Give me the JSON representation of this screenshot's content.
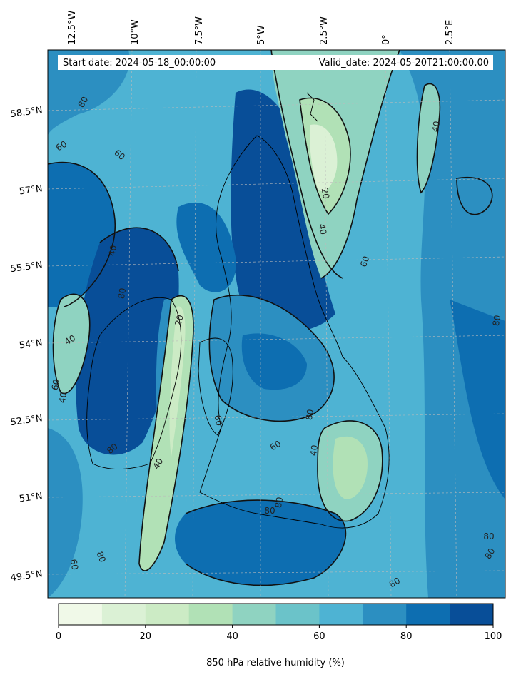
{
  "map": {
    "start_date": "Start date: 2024-05-18_00:00:00",
    "valid_date": "Valid_date: 2024-05-20T21:00:00.00",
    "lon_labels": [
      "12.5°W",
      "10°W",
      "7.5°W",
      "5°W",
      "2.5°W",
      "0°",
      "2.5°E"
    ],
    "lat_labels": [
      "58.5°N",
      "57°N",
      "55.5°N",
      "54°N",
      "52.5°N",
      "51°N",
      "49.5°N"
    ],
    "contour_labels": [
      "80",
      "60",
      "60",
      "40",
      "80",
      "40",
      "60",
      "40",
      "20",
      "20",
      "40",
      "60",
      "80",
      "40",
      "60",
      "80",
      "40",
      "80",
      "60",
      "80",
      "80",
      "80",
      "80",
      "60",
      "80",
      "40",
      "80"
    ]
  },
  "colorbar": {
    "label": "850 hPa relative humidity (%)",
    "ticks": [
      "0",
      "20",
      "40",
      "60",
      "80",
      "100"
    ],
    "colors": [
      "#f0f9e8",
      "#dbf1d5",
      "#ccebc5",
      "#b1e1b6",
      "#8fd3c1",
      "#6bc3c9",
      "#4eb3d3",
      "#2c8fc1",
      "#0d6eb1",
      "#084e98"
    ]
  }
}
